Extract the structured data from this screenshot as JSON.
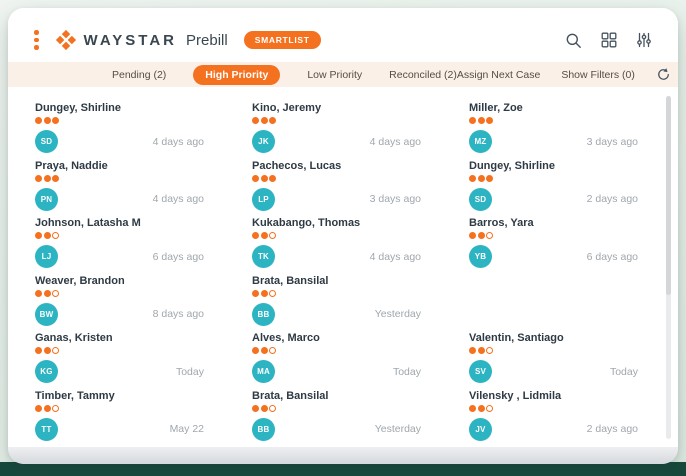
{
  "window": {
    "brand": "WAYSTAR",
    "product": "Prebill",
    "badge": "SMARTLIST"
  },
  "header_icons": [
    "search-icon",
    "grid-icon",
    "sliders-icon"
  ],
  "filter_bar": {
    "tabs": [
      {
        "label": "Pending (2)",
        "active": false
      },
      {
        "label": "High Priority",
        "active": true
      },
      {
        "label": "Low Priority",
        "active": false
      },
      {
        "label": "Reconciled (2)",
        "active": false
      }
    ],
    "actions": [
      {
        "label": "Assign Next Case"
      },
      {
        "label": "Show Filters (0)"
      }
    ],
    "refresh_icon": "refresh-icon"
  },
  "colors": {
    "accent": "#F4711F",
    "avatar_teal": "#2CB4C2",
    "filter_bar_bg": "#FBF0E7",
    "bottom_band": "#174A3D"
  },
  "cards": [
    {
      "name": "Dungey, Shirline",
      "initials": "SD",
      "dots_filled": 3,
      "dots_total": 3,
      "time": "4 days ago"
    },
    {
      "name": "Kino, Jeremy",
      "initials": "JK",
      "dots_filled": 3,
      "dots_total": 3,
      "time": "4 days ago"
    },
    {
      "name": "Miller, Zoe",
      "initials": "MZ",
      "dots_filled": 3,
      "dots_total": 3,
      "time": "3 days ago"
    },
    {
      "name": "Praya, Naddie",
      "initials": "PN",
      "dots_filled": 3,
      "dots_total": 3,
      "time": "4 days ago"
    },
    {
      "name": "Pachecos, Lucas",
      "initials": "LP",
      "dots_filled": 3,
      "dots_total": 3,
      "time": "3 days ago"
    },
    {
      "name": "Dungey, Shirline",
      "initials": "SD",
      "dots_filled": 3,
      "dots_total": 3,
      "time": "2 days ago"
    },
    {
      "name": "Johnson, Latasha M",
      "initials": "LJ",
      "dots_filled": 2,
      "dots_total": 3,
      "time": "6 days ago"
    },
    {
      "name": "Kukabango, Thomas",
      "initials": "TK",
      "dots_filled": 2,
      "dots_total": 3,
      "time": "4 days ago"
    },
    {
      "name": "Barros, Yara",
      "initials": "YB",
      "dots_filled": 2,
      "dots_total": 3,
      "time": "6 days ago"
    },
    {
      "name": "Weaver, Brandon",
      "initials": "BW",
      "dots_filled": 2,
      "dots_total": 3,
      "time": "8 days ago"
    },
    {
      "name": "Brata, Bansilal",
      "initials": "BB",
      "dots_filled": 2,
      "dots_total": 3,
      "time": "Yesterday"
    },
    null,
    {
      "name": "Ganas, Kristen",
      "initials": "KG",
      "dots_filled": 2,
      "dots_total": 3,
      "time": "Today"
    },
    {
      "name": "Alves, Marco",
      "initials": "MA",
      "dots_filled": 2,
      "dots_total": 3,
      "time": "Today"
    },
    {
      "name": "Valentin, Santiago",
      "initials": "SV",
      "dots_filled": 2,
      "dots_total": 3,
      "time": "Today"
    },
    {
      "name": "Timber, Tammy",
      "initials": "TT",
      "dots_filled": 2,
      "dots_total": 3,
      "time": "May 22"
    },
    {
      "name": "Brata, Bansilal",
      "initials": "BB",
      "dots_filled": 2,
      "dots_total": 3,
      "time": "Yesterday"
    },
    {
      "name": "Vilensky , Lidmila",
      "initials": "JV",
      "dots_filled": 2,
      "dots_total": 3,
      "time": "2 days ago"
    }
  ]
}
